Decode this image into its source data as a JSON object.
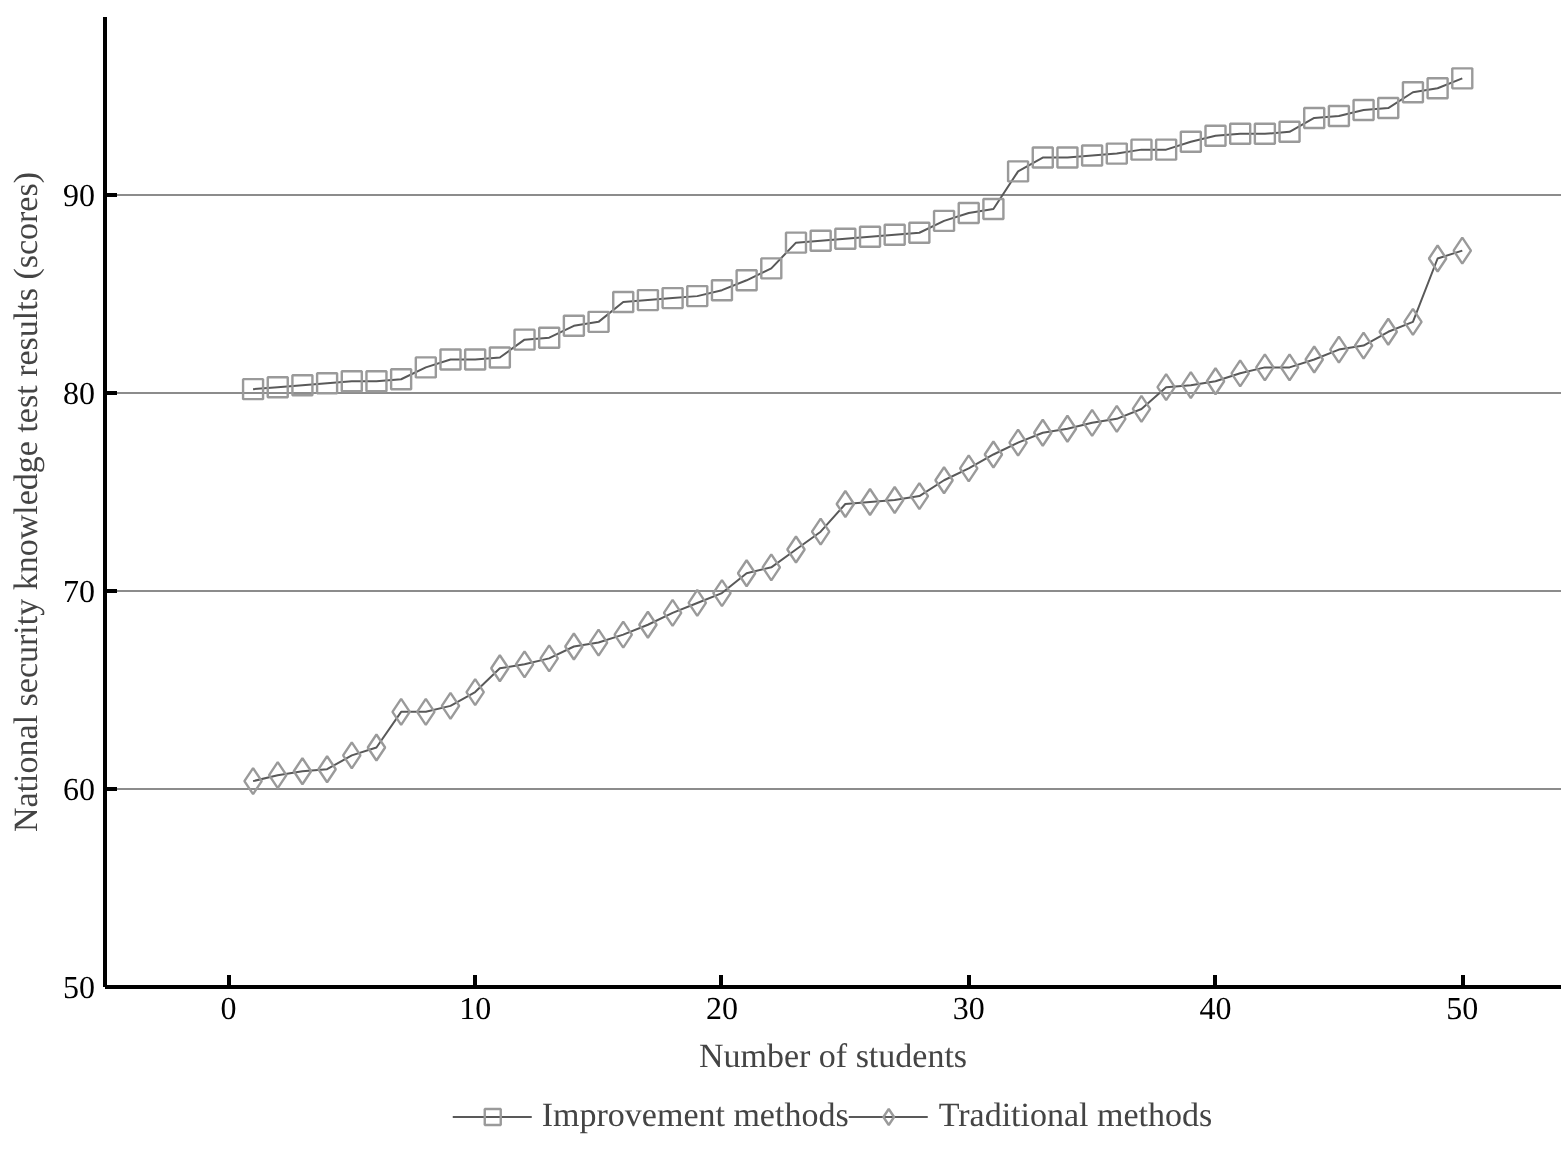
{
  "chart_data": {
    "type": "line",
    "xlabel": "Number of students",
    "ylabel": "National security knowledge test results (scores)",
    "x": [
      1,
      2,
      3,
      4,
      5,
      6,
      7,
      8,
      9,
      10,
      11,
      12,
      13,
      14,
      15,
      16,
      17,
      18,
      19,
      20,
      21,
      22,
      23,
      24,
      25,
      26,
      27,
      28,
      29,
      30,
      31,
      32,
      33,
      34,
      35,
      36,
      37,
      38,
      39,
      40,
      41,
      42,
      43,
      44,
      45,
      46,
      47,
      48,
      49,
      50
    ],
    "series": [
      {
        "name": "Improvement methods",
        "color": "#595959",
        "marker": "square",
        "values": [
          80.2,
          80.3,
          80.4,
          80.5,
          80.6,
          80.6,
          80.7,
          81.3,
          81.7,
          81.7,
          81.8,
          82.7,
          82.8,
          83.4,
          83.6,
          84.6,
          84.7,
          84.8,
          84.9,
          85.2,
          85.7,
          86.3,
          87.6,
          87.7,
          87.8,
          87.9,
          88.0,
          88.1,
          88.7,
          89.1,
          89.3,
          91.2,
          91.9,
          91.9,
          92.0,
          92.1,
          92.3,
          92.3,
          92.7,
          93.0,
          93.1,
          93.1,
          93.2,
          93.9,
          94.0,
          94.3,
          94.4,
          95.2,
          95.4,
          95.9
        ]
      },
      {
        "name": "Traditional methods",
        "color": "#595959",
        "marker": "diamond",
        "values": [
          60.4,
          60.7,
          60.9,
          61.0,
          61.7,
          62.1,
          63.9,
          63.9,
          64.2,
          64.9,
          66.1,
          66.3,
          66.6,
          67.2,
          67.4,
          67.8,
          68.3,
          68.9,
          69.4,
          69.9,
          70.9,
          71.2,
          72.1,
          73.0,
          74.4,
          74.5,
          74.6,
          74.8,
          75.6,
          76.2,
          76.9,
          77.5,
          78.0,
          78.2,
          78.5,
          78.7,
          79.2,
          80.3,
          80.4,
          80.6,
          81.0,
          81.3,
          81.3,
          81.7,
          82.2,
          82.4,
          83.1,
          83.6,
          86.8,
          87.2
        ]
      }
    ],
    "xlim": [
      -5,
      54
    ],
    "ylim": [
      50,
      99
    ],
    "xticks": [
      0,
      10,
      20,
      30,
      40,
      50
    ],
    "yticks": [
      50,
      60,
      70,
      80,
      90
    ],
    "grid": "y",
    "legend": "bottom",
    "line_style": "solid"
  }
}
